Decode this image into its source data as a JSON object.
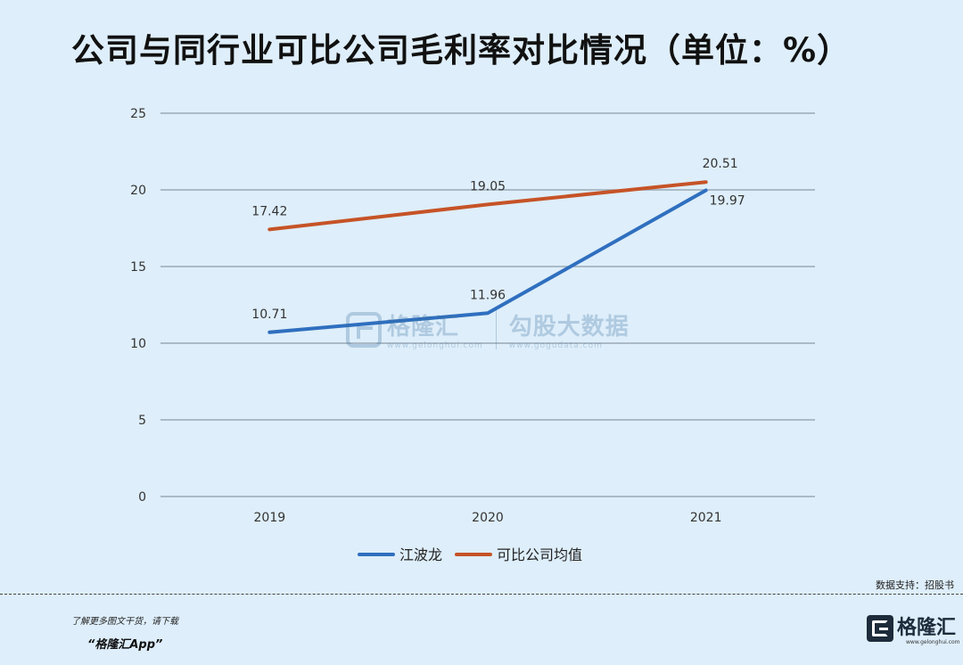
{
  "title": "公司与同行业可比公司毛利率对比情况（单位：%）",
  "chart_data": {
    "type": "line",
    "categories": [
      "2019",
      "2020",
      "2021"
    ],
    "series": [
      {
        "name": "江波龙",
        "values": [
          10.71,
          11.96,
          19.97
        ],
        "color": "#2f6fbf"
      },
      {
        "name": "可比公司均值",
        "values": [
          17.42,
          19.05,
          20.51
        ],
        "color": "#c65327"
      }
    ],
    "ylim": [
      0,
      25
    ],
    "yticks": [
      0,
      5,
      10,
      15,
      20,
      25
    ],
    "grid": true,
    "legend": "bottom"
  },
  "watermark": {
    "brand": "格隆汇",
    "brand_url": "www.gelonghui.com",
    "product": "勾股大数据",
    "product_url": "www.gogudata.com"
  },
  "source": "数据支持：招股书",
  "promo_line1": "了解更多图文干货，请下载",
  "promo_line2": "“格隆汇App”",
  "brand": {
    "name": "格隆汇",
    "url": "www.gelonghui.com"
  }
}
